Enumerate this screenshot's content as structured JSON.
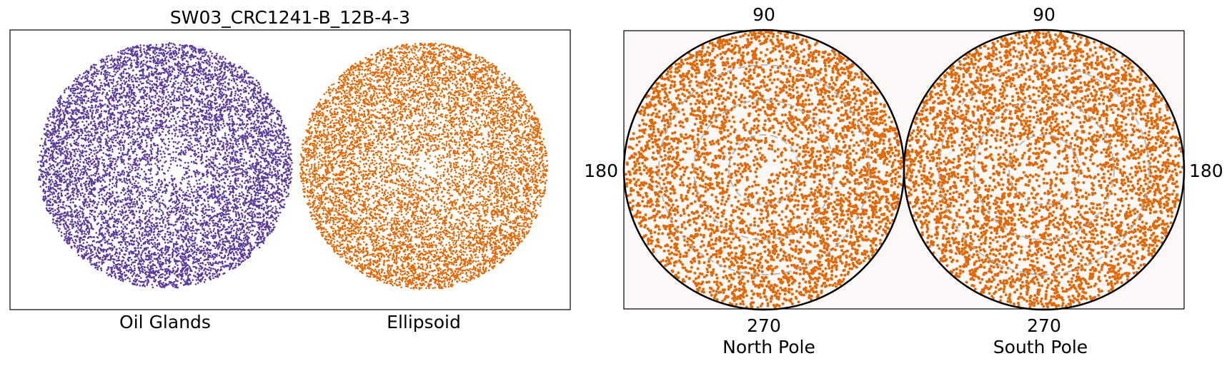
{
  "chart_data": [
    {
      "type": "scatter",
      "title": "SW03_CRC1241-B_12B-4-3",
      "grid": false,
      "series": [
        {
          "name": "Oil Glands",
          "color": "#5b3a9b",
          "point_count": 9000
        },
        {
          "name": "Ellipsoid",
          "color": "#e06a0a",
          "point_count": 9000
        }
      ],
      "xlabels": [
        "Oil Glands",
        "Ellipsoid"
      ]
    },
    {
      "type": "scatter",
      "subtype": "polar",
      "background": "#fcf8f7",
      "panels": [
        {
          "label": "North Pole",
          "tick_labels": {
            "top": "90",
            "left": "180",
            "bottom": "270"
          },
          "color": "#e06a0a",
          "point_count": 4500
        },
        {
          "label": "South Pole",
          "tick_labels": {
            "top": "90",
            "right": "180",
            "bottom": "270"
          },
          "color": "#e06a0a",
          "point_count": 4500
        }
      ],
      "grid": {
        "style": "dashed",
        "color": "#b0b0b0",
        "rings": 3
      }
    }
  ]
}
